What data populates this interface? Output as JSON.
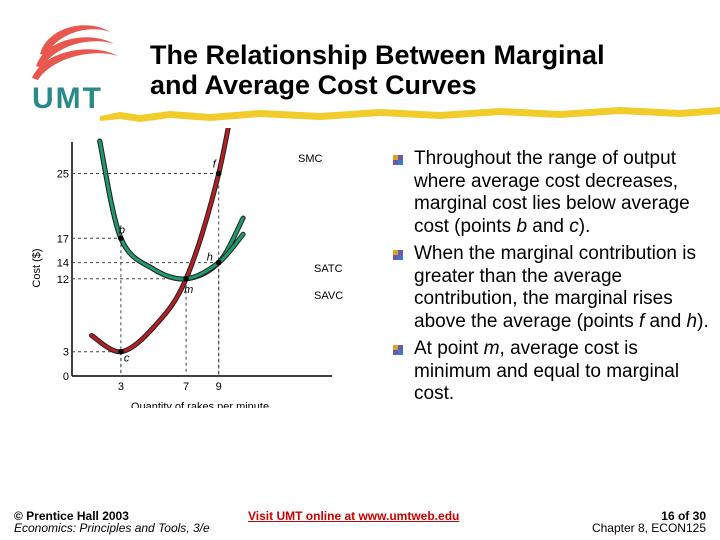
{
  "logo": {
    "text": "UMT"
  },
  "title": {
    "line1": "The Relationship Between Marginal",
    "line2": "and Average Cost Curves"
  },
  "colors": {
    "title_rule": "#f2cc2a",
    "smc": "#b41e24",
    "satc": "#1e9a6b",
    "savc": "#1e9a6b",
    "logo_red": "#e8584f",
    "logo_teal": "#2a8a8a",
    "link": "#cc0000",
    "bullet": "#6a5aa8"
  },
  "chart_data": {
    "type": "line",
    "ylabel": "Cost ($)",
    "xlabel": "Quantity of rakes per minute",
    "y_ticks": [
      "25",
      "17",
      "14",
      "12",
      "3",
      "0"
    ],
    "x_ticks": [
      "3",
      "7",
      "9"
    ],
    "series": [
      {
        "name": "SMC",
        "points": [
          [
            1.2,
            5.0
          ],
          [
            3,
            3
          ],
          [
            5,
            6
          ],
          [
            7,
            12
          ],
          [
            9,
            25
          ],
          [
            10.5,
            41
          ]
        ]
      },
      {
        "name": "SATC",
        "points": [
          [
            1.7,
            29
          ],
          [
            3,
            17
          ],
          [
            5,
            13.2
          ],
          [
            7,
            12
          ],
          [
            9,
            14
          ],
          [
            10.5,
            19.5
          ]
        ]
      },
      {
        "name": "SAVC",
        "points": [
          [
            1.7,
            29
          ],
          [
            3,
            17
          ],
          [
            5,
            13.2
          ],
          [
            7,
            12
          ],
          [
            9,
            14
          ],
          [
            10.5,
            17.5
          ]
        ]
      }
    ],
    "points": [
      {
        "label": "b",
        "x": 3,
        "y": 17
      },
      {
        "label": "c",
        "x": 3,
        "y": 3
      },
      {
        "label": "m",
        "x": 7,
        "y": 12
      },
      {
        "label": "f",
        "x": 9,
        "y": 25
      },
      {
        "label": "h",
        "x": 9,
        "y": 14
      }
    ],
    "curve_labels": [
      "SMC",
      "SATC",
      "SAVC"
    ]
  },
  "bullets": [
    {
      "parts": [
        {
          "text": "Throughout the range of output where average cost decreases, marginal cost lies below average cost (points "
        },
        {
          "text": "b",
          "italic": true
        },
        {
          "text": " and "
        },
        {
          "text": "c",
          "italic": true
        },
        {
          "text": ")."
        }
      ]
    },
    {
      "parts": [
        {
          "text": "When the marginal contribution is greater than the average contribution, the marginal rises above the average (points "
        },
        {
          "text": "f",
          "italic": true
        },
        {
          "text": " and "
        },
        {
          "text": "h",
          "italic": true
        },
        {
          "text": ")."
        }
      ]
    },
    {
      "parts": [
        {
          "text": "At point "
        },
        {
          "text": "m",
          "italic": true
        },
        {
          "text": ", average cost is minimum and equal to marginal cost."
        }
      ]
    }
  ],
  "footer": {
    "copyright": "© Prentice Hall 2003",
    "book": "Economics: Principles and Tools, 3/e",
    "link": "Visit UMT online at www.umtweb.edu",
    "page": "16 of 30",
    "chapter": "Chapter 8, ECON125"
  }
}
